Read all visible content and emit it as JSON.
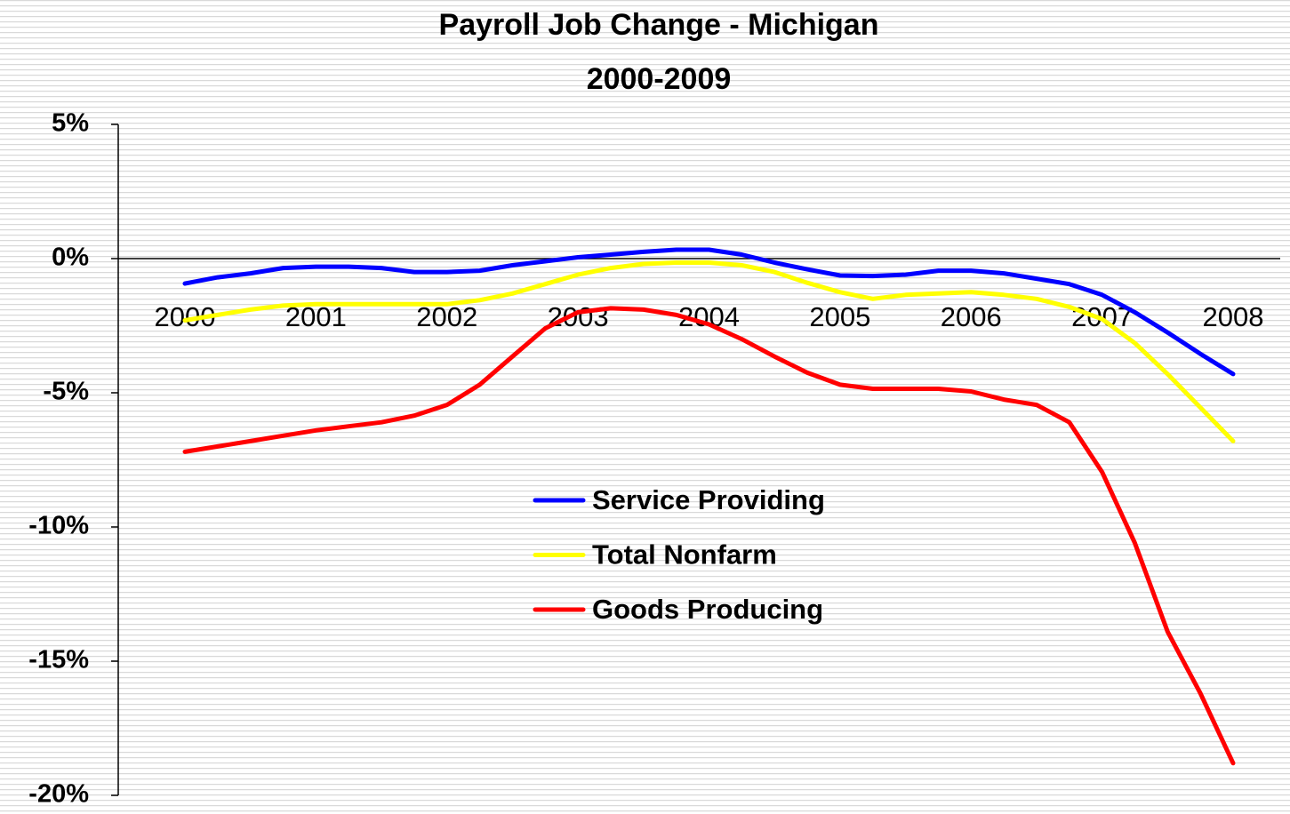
{
  "chart_data": {
    "type": "line",
    "title": "Payroll Job Change - Michigan",
    "subtitle": "2000-2009",
    "categories": [
      "2000",
      null,
      null,
      null,
      "2001",
      null,
      null,
      null,
      "2002",
      null,
      null,
      null,
      "2003",
      null,
      null,
      null,
      "2004",
      null,
      null,
      null,
      "2005",
      null,
      null,
      null,
      "2006",
      null,
      null,
      null,
      "2007",
      null,
      null,
      null,
      "2008"
    ],
    "series": [
      {
        "name": "Service Providing",
        "color": "#0000ff",
        "values": [
          -0.93,
          -0.7,
          -0.55,
          -0.35,
          -0.3,
          -0.3,
          -0.35,
          -0.5,
          -0.5,
          -0.45,
          -0.25,
          -0.1,
          0.05,
          0.15,
          0.25,
          0.33,
          0.33,
          0.15,
          -0.15,
          -0.4,
          -0.63,
          -0.65,
          -0.6,
          -0.45,
          -0.45,
          -0.55,
          -0.75,
          -0.95,
          -1.35,
          -2.0,
          -2.75,
          -3.55,
          -4.3
        ]
      },
      {
        "name": "Total Nonfarm",
        "color": "#ffff00",
        "values": [
          -2.3,
          -2.1,
          -1.9,
          -1.75,
          -1.7,
          -1.7,
          -1.7,
          -1.7,
          -1.7,
          -1.55,
          -1.3,
          -0.95,
          -0.6,
          -0.35,
          -0.2,
          -0.15,
          -0.15,
          -0.25,
          -0.5,
          -0.9,
          -1.25,
          -1.5,
          -1.35,
          -1.3,
          -1.25,
          -1.35,
          -1.5,
          -1.8,
          -2.25,
          -3.15,
          -4.3,
          -5.55,
          -6.8
        ]
      },
      {
        "name": "Goods Producing",
        "color": "#ff0000",
        "values": [
          -7.2,
          -7.0,
          -6.8,
          -6.6,
          -6.4,
          -6.25,
          -6.1,
          -5.85,
          -5.45,
          -4.7,
          -3.65,
          -2.6,
          -2.0,
          -1.85,
          -1.9,
          -2.1,
          -2.45,
          -3.0,
          -3.65,
          -4.25,
          -4.7,
          -4.85,
          -4.85,
          -4.85,
          -4.95,
          -5.25,
          -5.45,
          -6.1,
          -7.95,
          -10.6,
          -13.9,
          -16.2,
          -18.8
        ]
      }
    ],
    "ylim": [
      -20,
      5
    ],
    "yticks": [
      {
        "value": 5,
        "label": "5%"
      },
      {
        "value": 0,
        "label": "0%"
      },
      {
        "value": -5,
        "label": "-5%"
      },
      {
        "value": -10,
        "label": "-10%"
      },
      {
        "value": -15,
        "label": "-15%"
      },
      {
        "value": -20,
        "label": "-20%"
      }
    ]
  }
}
